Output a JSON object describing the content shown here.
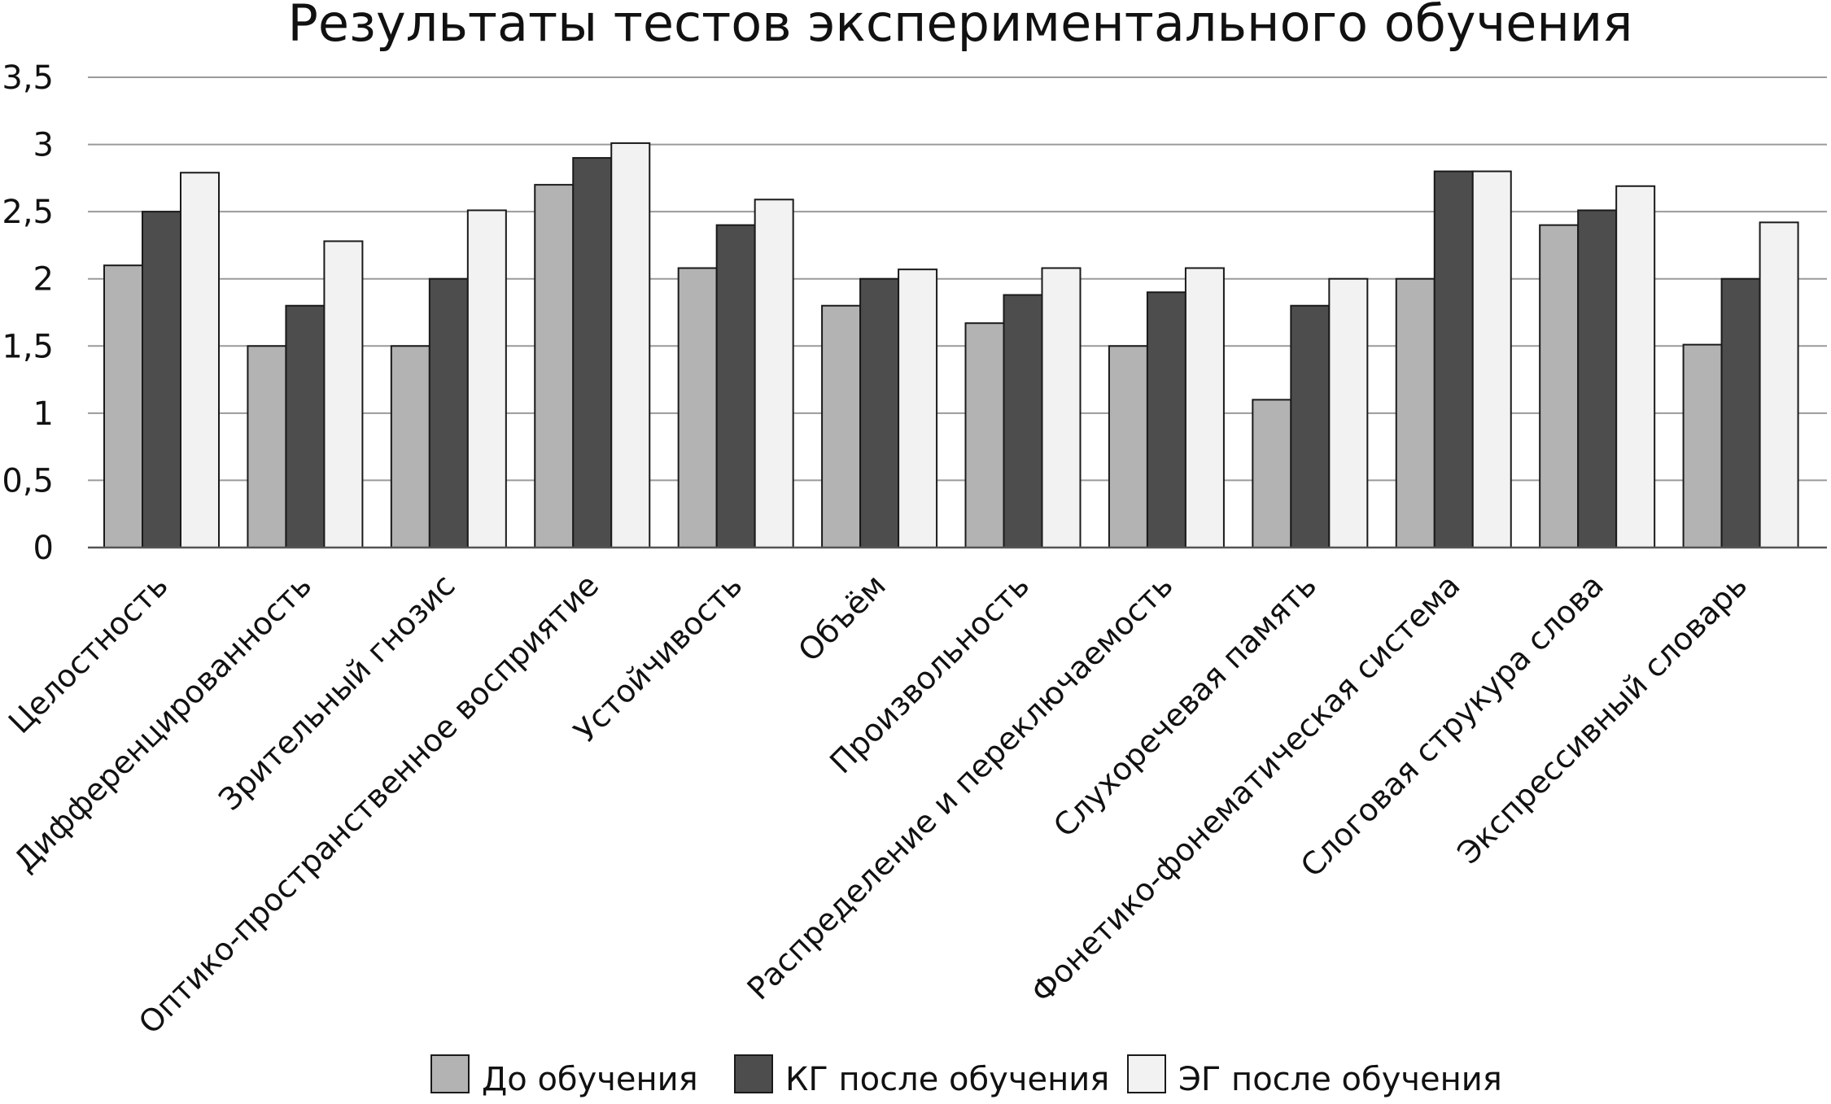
{
  "chart_data": {
    "type": "bar",
    "title": "Результаты тестов экспериментального обучения",
    "xlabel": "",
    "ylabel": "",
    "ylim": [
      0,
      3.5
    ],
    "yticks": [
      "0",
      "0,5",
      "1",
      "1,5",
      "2",
      "2,5",
      "3",
      "3,5"
    ],
    "ytick_values": [
      0,
      0.5,
      1,
      1.5,
      2,
      2.5,
      3,
      3.5
    ],
    "grid": true,
    "legend_position": "bottom",
    "categories": [
      "Целостность",
      "Дифференцированность",
      "Зрительный гнозис",
      "Оптико-пространственное восприятие",
      "Устойчивость",
      "Объём",
      "Произвольность",
      "Распределение и переключаемость",
      "Слухоречевая память",
      "Фонетико-фонематическая система",
      "Слоговая струкура слова",
      "Экспрессивный словарь"
    ],
    "series": [
      {
        "name": "До обучения",
        "color": "#b3b3b3",
        "values": [
          2.1,
          1.5,
          1.5,
          2.7,
          2.08,
          1.8,
          1.67,
          1.5,
          1.1,
          2.0,
          2.4,
          1.51
        ]
      },
      {
        "name": "КГ после обучения",
        "color": "#4d4d4d",
        "values": [
          2.5,
          1.8,
          2.0,
          2.9,
          2.4,
          2.0,
          1.88,
          1.9,
          1.8,
          2.8,
          2.51,
          2.0
        ]
      },
      {
        "name": "ЭГ после обучения",
        "color": "#f2f2f2",
        "values": [
          2.79,
          2.28,
          2.51,
          3.01,
          2.59,
          2.07,
          2.08,
          2.08,
          2.0,
          2.8,
          2.69,
          2.42
        ]
      }
    ]
  }
}
